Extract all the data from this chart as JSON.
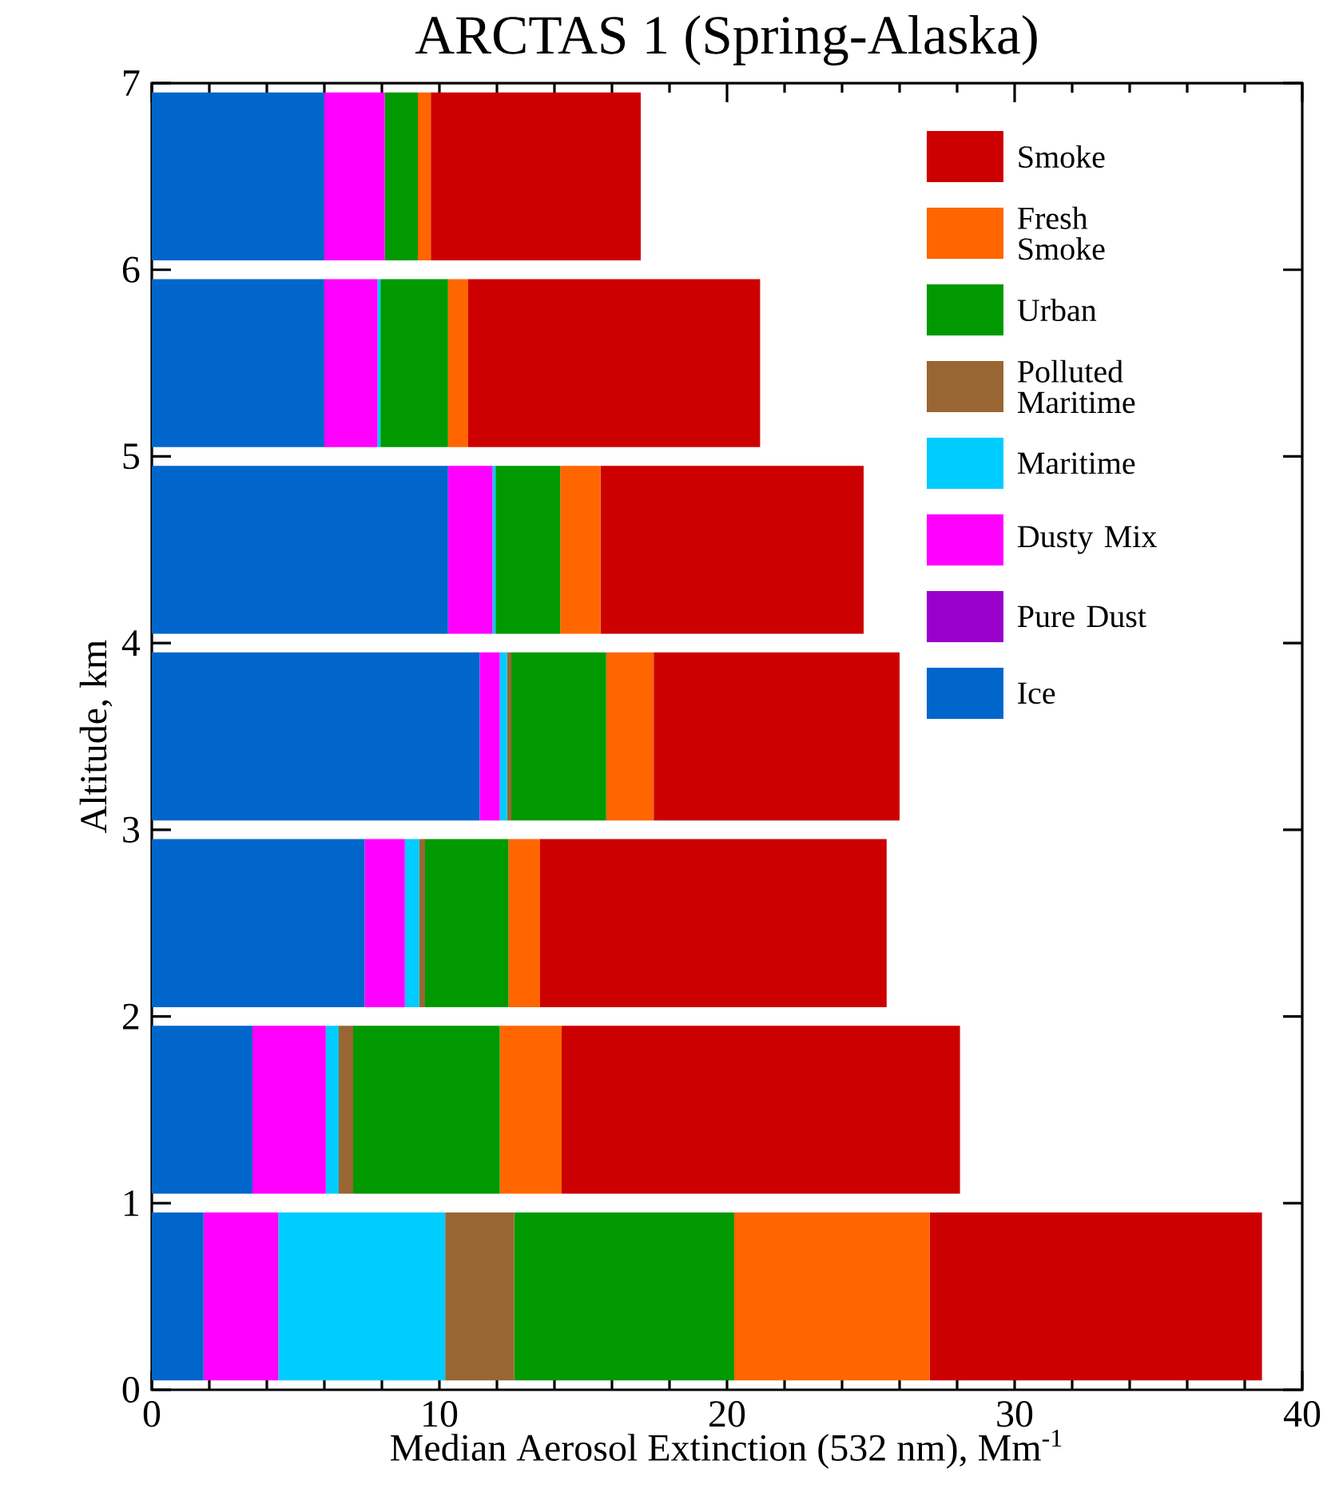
{
  "chart_data": {
    "type": "bar",
    "orientation": "horizontal",
    "stacked": true,
    "title": "ARCTAS 1 (Spring-Alaska)",
    "xlabel": "Median Aerosol Extinction (532 nm), Mm$^{-1}$",
    "ylabel": "Altitude, km",
    "x": [
      0.5,
      1.5,
      2.5,
      3.5,
      4.5,
      5.5,
      6.5
    ],
    "xlim": [
      0,
      40
    ],
    "xticks": [
      0,
      10,
      20,
      30,
      40
    ],
    "ylim": [
      0,
      7
    ],
    "yticks": [
      0,
      1,
      2,
      3,
      4,
      5,
      6,
      7
    ],
    "legend": "top right",
    "grid": false,
    "series": [
      {
        "name": "Ice",
        "color": "#0066cc",
        "values": [
          1.8,
          3.5,
          7.4,
          11.4,
          10.3,
          6.0,
          6.0
        ]
      },
      {
        "name": "Pure Dust",
        "color": "#9900cc",
        "values": [
          0,
          0,
          0,
          0,
          0,
          0,
          0
        ]
      },
      {
        "name": "Dusty Mix",
        "color": "#ff00ff",
        "values": [
          2.6,
          2.55,
          1.4,
          0.7,
          1.55,
          1.85,
          2.1
        ]
      },
      {
        "name": "Maritime",
        "color": "#00ccff",
        "values": [
          5.8,
          0.45,
          0.5,
          0.25,
          0.1,
          0.1,
          0
        ]
      },
      {
        "name": "Polluted Maritime",
        "color": "#996633",
        "values": [
          2.4,
          0.5,
          0.2,
          0.15,
          0,
          0,
          0
        ]
      },
      {
        "name": "Urban",
        "color": "#009900",
        "values": [
          7.65,
          5.1,
          2.9,
          3.3,
          2.25,
          2.35,
          1.15
        ]
      },
      {
        "name": "Fresh Smoke",
        "color": "#ff6600",
        "values": [
          6.8,
          2.15,
          1.1,
          1.65,
          1.4,
          0.7,
          0.45
        ]
      },
      {
        "name": "Smoke",
        "color": "#cc0000",
        "values": [
          11.55,
          13.85,
          12.05,
          8.55,
          9.15,
          10.15,
          7.3
        ]
      }
    ]
  }
}
